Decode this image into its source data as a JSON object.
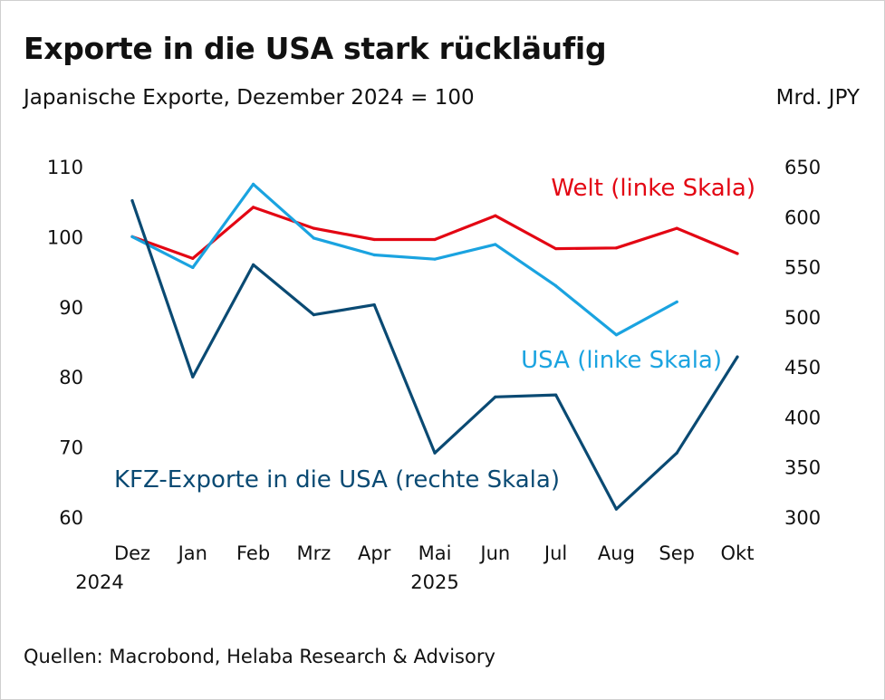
{
  "title": "Exporte in die USA stark rückläufig",
  "subtitle": "Japanische Exporte, Dezember 2024 = 100",
  "right_unit": "Mrd. JPY",
  "source": "Quellen: Macrobond, Helaba Research & Advisory",
  "chart_data": {
    "type": "line",
    "title": "Exporte in die USA stark rückläufig",
    "subtitle": "Japanische Exporte, Dezember 2024 = 100",
    "categories": [
      "Dez",
      "Jan",
      "Feb",
      "Mrz",
      "Apr",
      "Mai",
      "Jun",
      "Jul",
      "Aug",
      "Sep",
      "Okt"
    ],
    "year_labels": [
      {
        "label": "2024",
        "category": "Dez"
      },
      {
        "label": "2025",
        "category": "Mai"
      }
    ],
    "left_axis": {
      "ylim": [
        60,
        110
      ],
      "ticks": [
        110,
        100,
        90,
        80,
        70,
        60
      ]
    },
    "right_axis": {
      "label": "Mrd. JPY",
      "ylim": [
        300,
        650
      ],
      "ticks": [
        650,
        600,
        550,
        500,
        450,
        400,
        350,
        300
      ]
    },
    "grid": false,
    "series": [
      {
        "name": "Welt (linke Skala)",
        "axis": "left",
        "color": "#e30613",
        "values": [
          100.0,
          96.9,
          104.2,
          101.2,
          99.6,
          99.6,
          103.0,
          98.3,
          98.4,
          101.2,
          97.6
        ]
      },
      {
        "name": "USA (linke Skala)",
        "axis": "left",
        "color": "#1aa3e0",
        "values": [
          100.0,
          95.6,
          107.5,
          99.8,
          97.4,
          96.8,
          98.9,
          93.0,
          86.0,
          90.7,
          null
        ]
      },
      {
        "name": "KFZ-Exporte in die USA (rechte Skala)",
        "axis": "right",
        "color": "#0a4a73",
        "values": [
          616,
          440,
          552,
          502,
          512,
          364,
          420,
          422,
          308,
          364,
          460
        ]
      }
    ]
  }
}
